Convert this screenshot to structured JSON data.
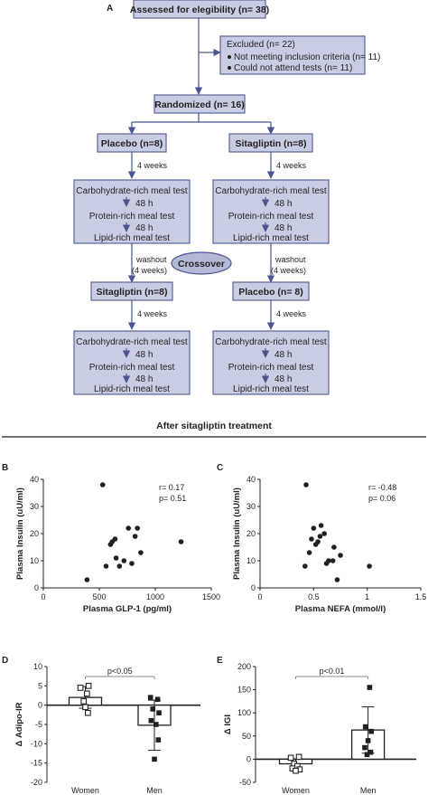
{
  "panel_labels": {
    "a": "A",
    "b": "B",
    "c": "C",
    "d": "D",
    "e": "E"
  },
  "flowchart": {
    "assessed": "Assessed for elegibility (n= 38)",
    "excluded": "Excluded (n= 22)",
    "excluded_items": [
      "Not meeting inclusion criteria (n= 11)",
      "Could not attend tests (n= 11)"
    ],
    "randomized": "Randomized (n= 16)",
    "arm_left_1": "Placebo (n=8)",
    "arm_right_1": "Sitagliptin (n=8)",
    "arm_left_2": "Sitagliptin (n=8)",
    "arm_right_2": "Placebo (n= 8)",
    "period": "4 weeks",
    "washout": "washout",
    "washout_period": "(4 weeks)",
    "crossover": "Crossover",
    "meal_tests": [
      "Carbohydrate-rich meal test",
      "48 h",
      "Protein-rich meal test",
      "48 h",
      "Lipid-rich meal test"
    ]
  },
  "section_title": "After sitagliptin treatment",
  "chart_data": [
    {
      "panel": "B",
      "type": "scatter",
      "xlabel": "Plasma GLP-1 (pg/ml)",
      "ylabel": "Plasma Insulin (uU/ml)",
      "xlim": [
        0,
        1500
      ],
      "ylim": [
        0,
        40
      ],
      "xticks": [
        "0",
        "500",
        "1000",
        "1500"
      ],
      "yticks": [
        "0",
        "10",
        "20",
        "30",
        "40"
      ],
      "stats": [
        "r= 0.17",
        "p= 0.51"
      ],
      "points": [
        [
          530,
          38
        ],
        [
          390,
          3
        ],
        [
          560,
          8
        ],
        [
          600,
          16
        ],
        [
          615,
          17
        ],
        [
          640,
          18
        ],
        [
          650,
          11
        ],
        [
          680,
          8
        ],
        [
          720,
          10
        ],
        [
          760,
          22
        ],
        [
          790,
          9
        ],
        [
          820,
          19
        ],
        [
          840,
          22
        ],
        [
          870,
          13
        ],
        [
          1230,
          17
        ]
      ]
    },
    {
      "panel": "C",
      "type": "scatter",
      "xlabel": "Plasma NEFA (mmol/l)",
      "ylabel": "Plasma Insulin (uU/ml)",
      "xlim": [
        0,
        1.5
      ],
      "ylim": [
        0,
        40
      ],
      "xticks": [
        "0",
        "0.5",
        "1",
        "1.5"
      ],
      "yticks": [
        "0",
        "10",
        "20",
        "30",
        "40"
      ],
      "stats": [
        "r= -0.48",
        "p= 0.06"
      ],
      "points": [
        [
          0.43,
          38
        ],
        [
          0.42,
          8
        ],
        [
          0.46,
          13
        ],
        [
          0.48,
          18
        ],
        [
          0.5,
          22
        ],
        [
          0.52,
          16
        ],
        [
          0.54,
          17
        ],
        [
          0.56,
          19
        ],
        [
          0.57,
          23
        ],
        [
          0.6,
          20
        ],
        [
          0.62,
          9
        ],
        [
          0.64,
          10
        ],
        [
          0.68,
          10
        ],
        [
          0.69,
          15
        ],
        [
          0.72,
          3
        ],
        [
          0.75,
          12
        ],
        [
          1.02,
          8
        ]
      ]
    },
    {
      "panel": "D",
      "type": "bar",
      "categories": [
        "Women",
        "Men"
      ],
      "values": [
        2,
        -5.2
      ],
      "errors": [
        2.8,
        6.5
      ],
      "ylabel": "Δ Adipo-IR",
      "ylim": [
        -20,
        10
      ],
      "yticks": [
        "10",
        "5",
        "0",
        "-5",
        "-10",
        "-15",
        "-20"
      ],
      "annotation": "p<0.05",
      "points": [
        [
          [
            -0.15,
            4.5
          ],
          [
            0.1,
            5
          ],
          [
            0.05,
            3
          ],
          [
            -0.05,
            1
          ],
          [
            0.0,
            -0.5
          ],
          [
            0.08,
            -2
          ]
        ],
        [
          [
            -0.12,
            2
          ],
          [
            0.1,
            1.5
          ],
          [
            -0.05,
            -1
          ],
          [
            0.14,
            -2
          ],
          [
            -0.1,
            -4
          ],
          [
            0.05,
            -5
          ],
          [
            0.12,
            -9
          ],
          [
            0.0,
            -14
          ]
        ]
      ]
    },
    {
      "panel": "E",
      "type": "bar",
      "categories": [
        "Women",
        "Men"
      ],
      "values": [
        -10,
        63
      ],
      "errors": [
        10,
        50
      ],
      "ylabel": "Δ IGI",
      "ylim": [
        -50,
        200
      ],
      "yticks": [
        "200",
        "150",
        "100",
        "50",
        "0",
        "-50"
      ],
      "annotation": "p<0.01",
      "points": [
        [
          [
            -0.15,
            3
          ],
          [
            0.1,
            5
          ],
          [
            -0.05,
            -10
          ],
          [
            0.05,
            -15
          ],
          [
            -0.1,
            -20
          ],
          [
            0.12,
            -22
          ],
          [
            0.0,
            -25
          ]
        ],
        [
          [
            0.05,
            155
          ],
          [
            -0.08,
            70
          ],
          [
            0.1,
            60
          ],
          [
            0.0,
            40
          ],
          [
            -0.1,
            25
          ],
          [
            0.08,
            15
          ],
          [
            -0.03,
            10
          ]
        ]
      ]
    }
  ]
}
